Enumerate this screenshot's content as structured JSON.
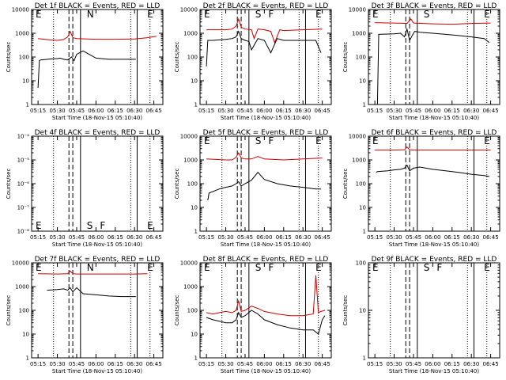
{
  "chart_data": [
    {
      "type": "line",
      "title": "Det 1f BLACK = Events, RED = LLD",
      "xlabel": "Start Time (18-Nov-15 05:10:40)",
      "ylabel": "Counts/sec",
      "yscale": "log",
      "ylim": [
        1,
        10000
      ],
      "xlim": [
        "05:10",
        "06:52"
      ],
      "ytick_labels": [
        "1",
        "10",
        "100",
        "1000",
        "10000"
      ],
      "xtick_labels": [
        "05:15",
        "05:30",
        "05:45",
        "06:00",
        "06:15",
        "06:30",
        "06:45"
      ],
      "markers": [
        "E",
        "N",
        "E"
      ],
      "series_colors": {
        "events": "#000000",
        "lld": "#cc0000"
      },
      "series": [
        {
          "key": "events",
          "x": [
            "05:15",
            "05:16",
            "05:17",
            "05:27",
            "05:30",
            "05:32",
            "05:35",
            "05:38",
            "05:41",
            "05:43",
            "05:45",
            "05:50",
            "06:00",
            "06:10",
            "06:20",
            "06:31"
          ],
          "y": [
            5,
            70,
            75,
            85,
            85,
            90,
            80,
            75,
            100,
            70,
            130,
            180,
            90,
            80,
            80,
            80
          ]
        },
        {
          "key": "lld",
          "x": [
            "05:15",
            "05:25",
            "05:30",
            "05:35",
            "05:38",
            "05:40",
            "05:42",
            "05:45",
            "06:00",
            "06:15",
            "06:30",
            "06:40",
            "06:47"
          ],
          "y": [
            600,
            520,
            500,
            550,
            700,
            1200,
            650,
            600,
            560,
            560,
            570,
            650,
            750
          ]
        }
      ]
    },
    {
      "type": "line",
      "title": "Det 2f BLACK = Events, RED = LLD",
      "xlabel": "Start Time (18-Nov-15 05:10:40)",
      "ylabel": "Counts/sec",
      "yscale": "log",
      "ylim": [
        1,
        10000
      ],
      "xlim": [
        "05:10",
        "06:52"
      ],
      "ytick_labels": [
        "1",
        "10",
        "100",
        "1000",
        "10000"
      ],
      "xtick_labels": [
        "05:15",
        "05:30",
        "05:45",
        "06:00",
        "06:15",
        "06:30",
        "06:45"
      ],
      "markers": [
        "E",
        "S",
        "F",
        "E"
      ],
      "series_colors": {
        "events": "#000000",
        "lld": "#cc0000"
      },
      "series": [
        {
          "key": "events",
          "x": [
            "05:15",
            "05:16",
            "05:20",
            "05:30",
            "05:35",
            "05:38",
            "05:40",
            "05:42",
            "05:45",
            "05:48",
            "05:50",
            "05:55",
            "06:00",
            "06:05",
            "06:10",
            "06:15",
            "06:20",
            "06:30",
            "06:40",
            "06:44"
          ],
          "y": [
            40,
            500,
            500,
            550,
            600,
            700,
            1200,
            600,
            500,
            450,
            200,
            600,
            500,
            150,
            600,
            500,
            500,
            500,
            500,
            150
          ]
        },
        {
          "key": "lld",
          "x": [
            "05:15",
            "05:30",
            "05:35",
            "05:38",
            "05:40",
            "05:42",
            "05:45",
            "05:50",
            "05:52",
            "05:55",
            "06:00",
            "06:05",
            "06:08",
            "06:12",
            "06:15",
            "06:30",
            "06:45"
          ],
          "y": [
            1400,
            1400,
            1500,
            2000,
            4000,
            1800,
            1500,
            1400,
            600,
            1500,
            1400,
            1200,
            400,
            1400,
            1300,
            1400,
            1500
          ]
        }
      ]
    },
    {
      "type": "line",
      "title": "Det 3f BLACK = Events, RED = LLD",
      "xlabel": "Start Time (18-Nov-15 05:10:40)",
      "ylabel": "Counts/sec",
      "yscale": "log",
      "ylim": [
        1,
        10000
      ],
      "xlim": [
        "05:10",
        "06:52"
      ],
      "ytick_labels": [
        "1",
        "10",
        "100",
        "1000",
        "10000"
      ],
      "xtick_labels": [
        "05:15",
        "05:30",
        "05:45",
        "06:00",
        "06:15",
        "06:30",
        "06:45"
      ],
      "markers": [
        "E",
        "S",
        "E"
      ],
      "series_colors": {
        "events": "#000000",
        "lld": "#cc0000"
      },
      "series": [
        {
          "key": "events",
          "x": [
            "05:17",
            "05:18",
            "05:30",
            "05:35",
            "05:38",
            "05:40",
            "05:42",
            "05:45",
            "05:46",
            "05:50",
            "06:00",
            "06:10",
            "06:20",
            "06:30",
            "06:40",
            "06:44"
          ],
          "y": [
            1,
            900,
            950,
            1000,
            700,
            1500,
            500,
            1000,
            1200,
            1100,
            1000,
            900,
            800,
            700,
            600,
            400
          ]
        },
        {
          "key": "lld",
          "x": [
            "05:15",
            "05:30",
            "05:40",
            "05:43",
            "05:45",
            "06:00",
            "06:15",
            "06:30",
            "06:45"
          ],
          "y": [
            2800,
            2700,
            2600,
            4000,
            2700,
            2500,
            2400,
            2600,
            2700
          ]
        }
      ]
    },
    {
      "type": "line",
      "title": "Det 4f BLACK = Events, RED = LLD",
      "xlabel": "Start Time (18-Nov-15 05:10:40)",
      "ylabel": "Counts/sec",
      "yscale": "log",
      "ylim": [
        1e-08,
        0.0001
      ],
      "xlim": [
        "05:10",
        "06:52"
      ],
      "ytick_labels": [
        "10⁻⁸",
        "10⁻⁷",
        "10⁻⁶",
        "10⁻⁵",
        "10⁻⁴"
      ],
      "xtick_labels": [
        "05:15",
        "05:30",
        "05:45",
        "06:00",
        "06:15",
        "06:30",
        "06:45"
      ],
      "markers": [
        "E",
        "S",
        "F",
        "E"
      ],
      "series_colors": {
        "events": "#000000",
        "lld": "#cc0000"
      },
      "series": []
    },
    {
      "type": "line",
      "title": "Det 5f BLACK = Events, RED = LLD",
      "xlabel": "Start Time (18-Nov-15 05:10:40)",
      "ylabel": "Counts/sec",
      "yscale": "log",
      "ylim": [
        1,
        10000
      ],
      "xlim": [
        "05:10",
        "06:52"
      ],
      "ytick_labels": [
        "1",
        "10",
        "100",
        "1000",
        "10000"
      ],
      "xtick_labels": [
        "05:15",
        "05:30",
        "05:45",
        "06:00",
        "06:15",
        "06:30",
        "06:45"
      ],
      "markers": [
        "E",
        "S",
        "F",
        "E"
      ],
      "series_colors": {
        "events": "#000000",
        "lld": "#cc0000"
      },
      "series": [
        {
          "key": "events",
          "x": [
            "05:16",
            "05:17",
            "05:25",
            "05:30",
            "05:35",
            "05:38",
            "05:40",
            "05:42",
            "05:45",
            "05:50",
            "05:55",
            "06:00",
            "06:10",
            "06:20",
            "06:30",
            "06:40",
            "06:44"
          ],
          "y": [
            20,
            40,
            60,
            70,
            80,
            100,
            120,
            80,
            100,
            140,
            300,
            150,
            100,
            80,
            70,
            60,
            60
          ]
        },
        {
          "key": "lld",
          "x": [
            "05:15",
            "05:30",
            "05:35",
            "05:38",
            "05:40",
            "05:42",
            "05:45",
            "05:50",
            "05:55",
            "06:00",
            "06:15",
            "06:30",
            "06:45"
          ],
          "y": [
            1100,
            1000,
            1000,
            1300,
            2000,
            1200,
            1100,
            1100,
            1400,
            1100,
            1000,
            1100,
            1200
          ]
        }
      ]
    },
    {
      "type": "line",
      "title": "Det 6f BLACK = Events, RED = LLD",
      "xlabel": "Start Time (18-Nov-15 05:10:40)",
      "ylabel": "Counts/sec",
      "yscale": "log",
      "ylim": [
        1,
        10000
      ],
      "xlim": [
        "05:10",
        "06:52"
      ],
      "ytick_labels": [
        "1",
        "10",
        "100",
        "1000",
        "10000"
      ],
      "xtick_labels": [
        "05:15",
        "05:30",
        "05:45",
        "06:00",
        "06:15",
        "06:30",
        "06:45"
      ],
      "markers": [
        "E",
        "E"
      ],
      "series_colors": {
        "events": "#000000",
        "lld": "#cc0000"
      },
      "series": [
        {
          "key": "events",
          "x": [
            "05:16",
            "05:17",
            "05:25",
            "05:30",
            "05:35",
            "05:38",
            "05:40",
            "05:42",
            "05:45",
            "05:50",
            "06:00",
            "06:10",
            "06:20",
            "06:30",
            "06:40",
            "06:44"
          ],
          "y": [
            300,
            320,
            350,
            380,
            400,
            450,
            600,
            350,
            450,
            500,
            400,
            350,
            300,
            250,
            220,
            200
          ]
        },
        {
          "key": "lld",
          "x": [
            "05:15",
            "05:30",
            "05:38",
            "05:40",
            "05:42",
            "05:45",
            "06:00",
            "06:15",
            "06:30",
            "06:45"
          ],
          "y": [
            2600,
            2600,
            2700,
            3500,
            2700,
            2600,
            2600,
            2600,
            2600,
            2600
          ]
        }
      ]
    },
    {
      "type": "line",
      "title": "Det 7f BLACK = Events, RED = LLD",
      "xlabel": "Start Time (18-Nov-15 05:10:40)",
      "ylabel": "Counts/sec",
      "yscale": "log",
      "ylim": [
        1,
        10000
      ],
      "xlim": [
        "05:10",
        "06:52"
      ],
      "ytick_labels": [
        "1",
        "10",
        "100",
        "1000",
        "10000"
      ],
      "xtick_labels": [
        "05:15",
        "05:30",
        "05:45",
        "06:00",
        "06:15",
        "06:30",
        "06:45"
      ],
      "markers": [
        "E",
        "N",
        "E"
      ],
      "series_colors": {
        "events": "#000000",
        "lld": "#cc0000"
      },
      "series": [
        {
          "key": "events",
          "x": [
            "05:22",
            "05:30",
            "05:35",
            "05:38",
            "05:40",
            "05:42",
            "05:45",
            "05:50",
            "06:00",
            "06:10",
            "06:20",
            "06:31"
          ],
          "y": [
            700,
            750,
            800,
            700,
            900,
            600,
            900,
            500,
            450,
            400,
            380,
            380
          ]
        },
        {
          "key": "lld",
          "x": [
            "05:15",
            "05:30",
            "05:38",
            "05:40",
            "05:42",
            "05:45",
            "06:00",
            "06:15",
            "06:30",
            "06:40"
          ],
          "y": [
            3500,
            3400,
            3500,
            4500,
            3500,
            3400,
            3400,
            3400,
            3400,
            3500
          ]
        }
      ]
    },
    {
      "type": "line",
      "title": "Det 8f BLACK = Events, RED = LLD",
      "xlabel": "Start Time (18-Nov-15 05:10:40)",
      "ylabel": "Counts/sec",
      "yscale": "log",
      "ylim": [
        1,
        10000
      ],
      "xlim": [
        "05:10",
        "06:52"
      ],
      "ytick_labels": [
        "1",
        "10",
        "100",
        "1000",
        "10000"
      ],
      "xtick_labels": [
        "05:15",
        "05:30",
        "05:45",
        "06:00",
        "06:15",
        "06:30",
        "06:45"
      ],
      "markers": [
        "E",
        "S",
        "F",
        "E"
      ],
      "series_colors": {
        "events": "#000000",
        "lld": "#cc0000"
      },
      "series": [
        {
          "key": "events",
          "x": [
            "05:15",
            "05:20",
            "05:25",
            "05:30",
            "05:35",
            "05:38",
            "05:40",
            "05:42",
            "05:45",
            "05:50",
            "05:55",
            "06:00",
            "06:10",
            "06:20",
            "06:30",
            "06:38",
            "06:42",
            "06:45",
            "06:47"
          ],
          "y": [
            50,
            40,
            35,
            30,
            30,
            40,
            80,
            50,
            60,
            100,
            70,
            40,
            25,
            18,
            15,
            15,
            10,
            40,
            60
          ]
        },
        {
          "key": "lld",
          "x": [
            "05:15",
            "05:20",
            "05:25",
            "05:30",
            "05:35",
            "05:38",
            "05:40",
            "05:42",
            "05:45",
            "05:50",
            "05:55",
            "06:00",
            "06:10",
            "06:20",
            "06:30",
            "06:38",
            "06:40",
            "06:42",
            "06:44",
            "06:47"
          ],
          "y": [
            80,
            70,
            80,
            90,
            80,
            100,
            250,
            90,
            100,
            150,
            120,
            90,
            70,
            60,
            60,
            70,
            3000,
            80,
            90,
            100
          ]
        }
      ]
    },
    {
      "type": "line",
      "title": "Det 9f BLACK = Events, RED = LLD",
      "xlabel": "Start Time (18-Nov-15 05:10:40)",
      "ylabel": "Counts/sec",
      "yscale": "log",
      "ylim": [
        1,
        1000
      ],
      "xlim": [
        "05:10",
        "06:52"
      ],
      "ytick_labels": [
        "1",
        "10",
        "100"
      ],
      "xtick_labels": [
        "05:15",
        "05:30",
        "05:45",
        "06:00",
        "06:15",
        "06:30",
        "06:45"
      ],
      "markers": [
        "E",
        "S",
        "F",
        "E"
      ],
      "series_colors": {
        "events": "#000000",
        "lld": "#cc0000"
      },
      "series": []
    }
  ]
}
